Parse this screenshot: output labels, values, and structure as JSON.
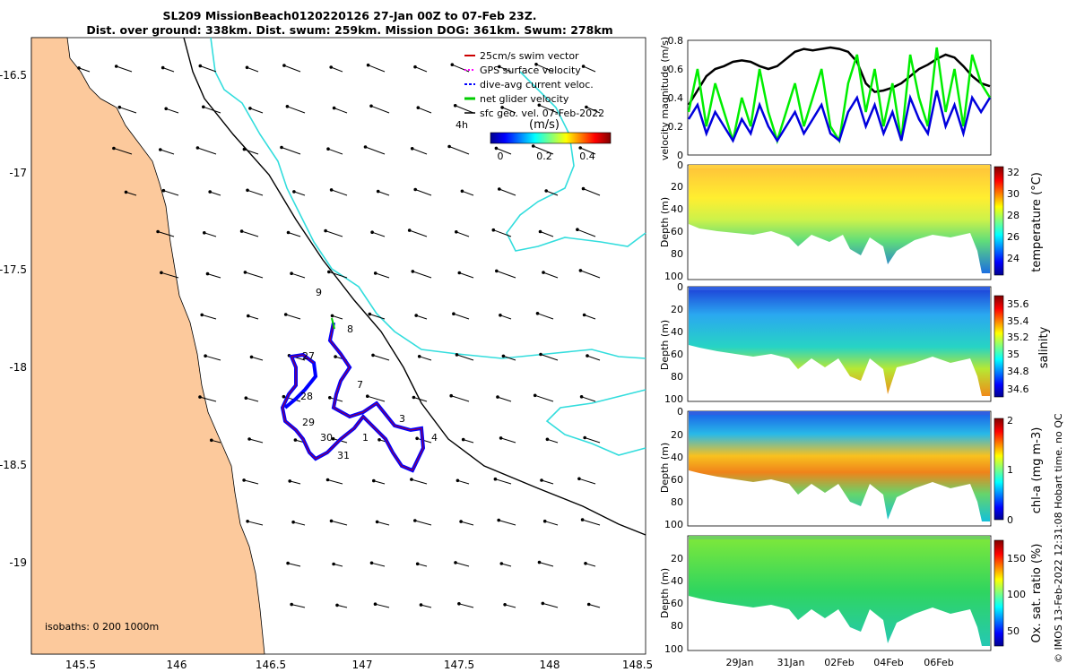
{
  "header": {
    "title_line1": "SL209 MissionBeach0120220126 27-Jan 00Z to 07-Feb 23Z.",
    "title_line2": "Dist. over ground: 338km. Dist. swum: 259km. Mission DOG: 361km. Swum: 278km"
  },
  "chart_data": [
    {
      "type": "map",
      "xticks": [
        "145.5",
        "146",
        "146.5",
        "147",
        "147.5",
        "148",
        "148.5"
      ],
      "xtick_values": [
        145.5,
        146,
        146.5,
        147,
        147.5,
        148,
        148.5
      ],
      "yticks": [
        "-16.5",
        "-17",
        "-17.5",
        "-18",
        "-18.5",
        "-19"
      ],
      "ytick_values": [
        -16.5,
        -17,
        -17.5,
        -18,
        -18.5,
        -19
      ],
      "xlim": [
        145.2,
        148.5
      ],
      "ylim": [
        -19.5,
        -16.3
      ],
      "legend": [
        {
          "label": "25cm/s swim vector",
          "color": "#cc0000"
        },
        {
          "label": "GPS surface velocity",
          "color": "#ff00ff"
        },
        {
          "label": "dive-avg current veloc.",
          "color": "#0000ff"
        },
        {
          "label": "net glider velocity",
          "color": "#00cc00"
        },
        {
          "label": "sfc geo. vel. 07-Feb-2022",
          "color": "#000000"
        }
      ],
      "vector_label": "4h",
      "colorbar": {
        "title": "(m/s)",
        "ticks": [
          "0",
          "0.2",
          "0.4"
        ],
        "tick_values": [
          0,
          0.2,
          0.4
        ],
        "range": [
          0,
          0.5
        ]
      },
      "isobaths_label": "isobaths: 0   200  1000m",
      "track_day_labels": [
        "9",
        "8",
        "27",
        "7",
        "28",
        "3",
        "29",
        "1",
        "4",
        "30",
        "31"
      ],
      "colors": {
        "land": "#fcc99c",
        "coast": "#000000",
        "isobath_200": "#000000",
        "isobath_1000": "#33dddd",
        "track": "#0000ff"
      }
    },
    {
      "type": "line",
      "ylabel": "velocity magnitude (m/s)",
      "ylim": [
        0,
        0.8
      ],
      "yticks": [
        "0",
        "0.2",
        "0.4",
        "0.6",
        "0.8"
      ],
      "series": [
        {
          "color": "#000000",
          "values": [
            0.35,
            0.45,
            0.55,
            0.6,
            0.62,
            0.65,
            0.66,
            0.65,
            0.62,
            0.6,
            0.62,
            0.67,
            0.72,
            0.74,
            0.73,
            0.74,
            0.75,
            0.74,
            0.72,
            0.65,
            0.5,
            0.44,
            0.45,
            0.47,
            0.5,
            0.55,
            0.6,
            0.63,
            0.67,
            0.7,
            0.68,
            0.62,
            0.55,
            0.5,
            0.48
          ]
        },
        {
          "color": "#00ee00",
          "values": [
            0.3,
            0.6,
            0.2,
            0.5,
            0.3,
            0.1,
            0.4,
            0.2,
            0.6,
            0.3,
            0.1,
            0.3,
            0.5,
            0.2,
            0.4,
            0.6,
            0.2,
            0.1,
            0.5,
            0.7,
            0.3,
            0.6,
            0.2,
            0.5,
            0.1,
            0.7,
            0.4,
            0.2,
            0.75,
            0.3,
            0.6,
            0.2,
            0.7,
            0.5,
            0.4
          ]
        },
        {
          "color": "#0000dd",
          "values": [
            0.25,
            0.35,
            0.15,
            0.3,
            0.2,
            0.1,
            0.25,
            0.15,
            0.35,
            0.2,
            0.1,
            0.2,
            0.3,
            0.15,
            0.25,
            0.35,
            0.15,
            0.1,
            0.3,
            0.4,
            0.2,
            0.35,
            0.15,
            0.3,
            0.1,
            0.4,
            0.25,
            0.15,
            0.45,
            0.2,
            0.35,
            0.15,
            0.4,
            0.3,
            0.4
          ]
        }
      ]
    },
    {
      "type": "heatmap",
      "ylabel": "Depth (m)",
      "clabel": "temperature (°C)",
      "yticks": [
        "0",
        "20",
        "40",
        "60",
        "80",
        "100"
      ],
      "cticks": [
        "24",
        "26",
        "28",
        "30",
        "32"
      ],
      "clim": [
        22.5,
        32.5
      ]
    },
    {
      "type": "heatmap",
      "ylabel": "Depth (m)",
      "clabel": "salinity",
      "yticks": [
        "0",
        "20",
        "40",
        "60",
        "80",
        "100"
      ],
      "cticks": [
        "34.6",
        "34.8",
        "35",
        "35.2",
        "35.4",
        "35.6"
      ],
      "clim": [
        34.5,
        35.7
      ]
    },
    {
      "type": "heatmap",
      "ylabel": "Depth (m)",
      "clabel": "chl-a (mg m-3)",
      "yticks": [
        "0",
        "20",
        "40",
        "60",
        "80",
        "100"
      ],
      "cticks": [
        "0",
        "1",
        "2"
      ],
      "clim": [
        0,
        2
      ]
    },
    {
      "type": "heatmap",
      "ylabel": "Depth (m)",
      "clabel": "Ox. sat. ratio (%)",
      "yticks": [
        "20",
        "40",
        "60",
        "80",
        "100"
      ],
      "cticks": [
        "50",
        "100",
        "150"
      ],
      "clim": [
        30,
        175
      ],
      "xticks": [
        "29Jan",
        "31Jan",
        "02Feb",
        "04Feb",
        "06Feb"
      ]
    }
  ],
  "footer": {
    "credit": "© IMOS 13-Feb-2022 12:31:08 Hobart time. no QC"
  }
}
